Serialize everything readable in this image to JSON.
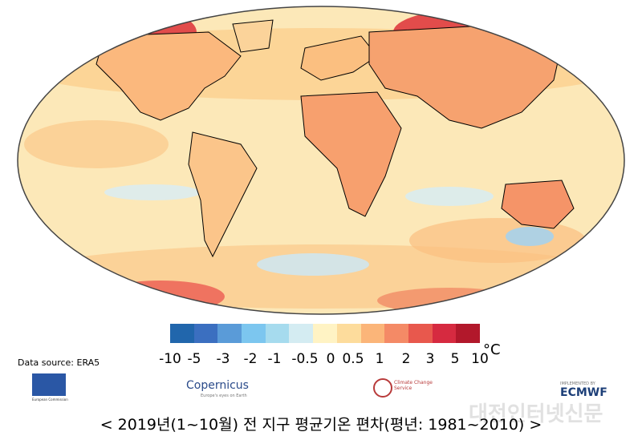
{
  "legend": {
    "colors": [
      "#2166ac",
      "#3b6fc0",
      "#5a9bd8",
      "#7cc6ef",
      "#a6dbee",
      "#d4ecf2",
      "#fff3c4",
      "#fddc9c",
      "#fbb579",
      "#f48a66",
      "#e8584d",
      "#d62a40",
      "#b2182b"
    ],
    "ticks": [
      "-10",
      "-5",
      "-3",
      "-2",
      "-1",
      "-0.5",
      "0",
      "0.5",
      "1",
      "2",
      "3",
      "5",
      "10"
    ],
    "unit": "°C"
  },
  "source": "Data source: ERA5",
  "logos": {
    "eu": "European Commission",
    "copernicus": "Copernicus",
    "copernicus_tagline": "Europe's eyes on Earth",
    "c3s": "Climate Change Service",
    "ecmwf_small": "IMPLEMENTED BY",
    "ecmwf": "ECMWF"
  },
  "caption": "< 2019년(1~10월) 전 지구 평균기온 편차(평년: 1981~2010) >",
  "watermark": "대전인터넷신문",
  "map": {
    "ocean_base": "#fce8b8",
    "anomaly_regions": [
      {
        "region": "North Atlantic",
        "level": "cold",
        "color": "#7fb6e0"
      },
      {
        "region": "Alaska/Arctic Canada",
        "level": "very warm",
        "color": "#e8584d"
      },
      {
        "region": "Siberia",
        "level": "very warm",
        "color": "#e8584d"
      },
      {
        "region": "Southern Africa",
        "level": "warm",
        "color": "#f48a66"
      },
      {
        "region": "Antarctic margin",
        "level": "warm",
        "color": "#f48a66"
      }
    ]
  }
}
